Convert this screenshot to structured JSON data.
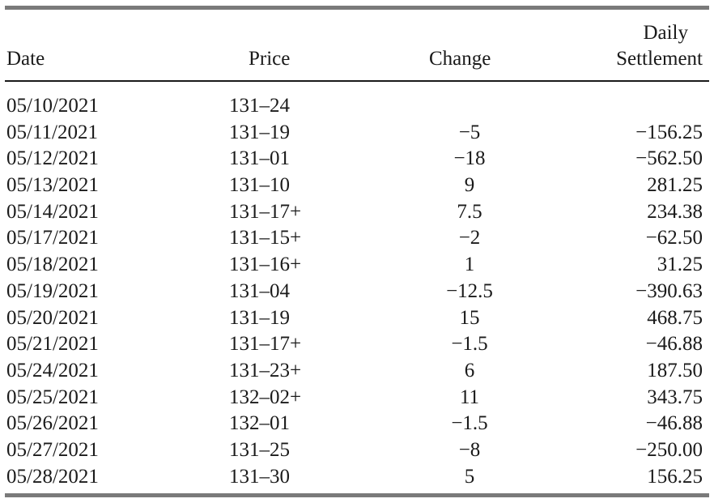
{
  "table": {
    "headers": {
      "date": "Date",
      "price": "Price",
      "change": "Change",
      "daily_line1": "Daily",
      "daily_line2": "Settlement"
    },
    "rows": [
      {
        "date": "05/10/2021",
        "price": "131–24",
        "change": "",
        "settlement": ""
      },
      {
        "date": "05/11/2021",
        "price": "131–19",
        "change": "−5",
        "settlement": "−156.25"
      },
      {
        "date": "05/12/2021",
        "price": "131–01",
        "change": "−18",
        "settlement": "−562.50"
      },
      {
        "date": "05/13/2021",
        "price": "131–10",
        "change": "9",
        "settlement": "281.25"
      },
      {
        "date": "05/14/2021",
        "price": "131–17+",
        "change": "7.5",
        "settlement": "234.38"
      },
      {
        "date": "05/17/2021",
        "price": "131–15+",
        "change": "−2",
        "settlement": "−62.50"
      },
      {
        "date": "05/18/2021",
        "price": "131–16+",
        "change": "1",
        "settlement": "31.25"
      },
      {
        "date": "05/19/2021",
        "price": "131–04",
        "change": "−12.5",
        "settlement": "−390.63"
      },
      {
        "date": "05/20/2021",
        "price": "131–19",
        "change": "15",
        "settlement": "468.75"
      },
      {
        "date": "05/21/2021",
        "price": "131–17+",
        "change": "−1.5",
        "settlement": "−46.88"
      },
      {
        "date": "05/24/2021",
        "price": "131–23+",
        "change": "6",
        "settlement": "187.50"
      },
      {
        "date": "05/25/2021",
        "price": "132–02+",
        "change": "11",
        "settlement": "343.75"
      },
      {
        "date": "05/26/2021",
        "price": "132–01",
        "change": "−1.5",
        "settlement": "−46.88"
      },
      {
        "date": "05/27/2021",
        "price": "131–25",
        "change": "−8",
        "settlement": "−250.00"
      },
      {
        "date": "05/28/2021",
        "price": "131–30",
        "change": "5",
        "settlement": "156.25"
      }
    ]
  }
}
